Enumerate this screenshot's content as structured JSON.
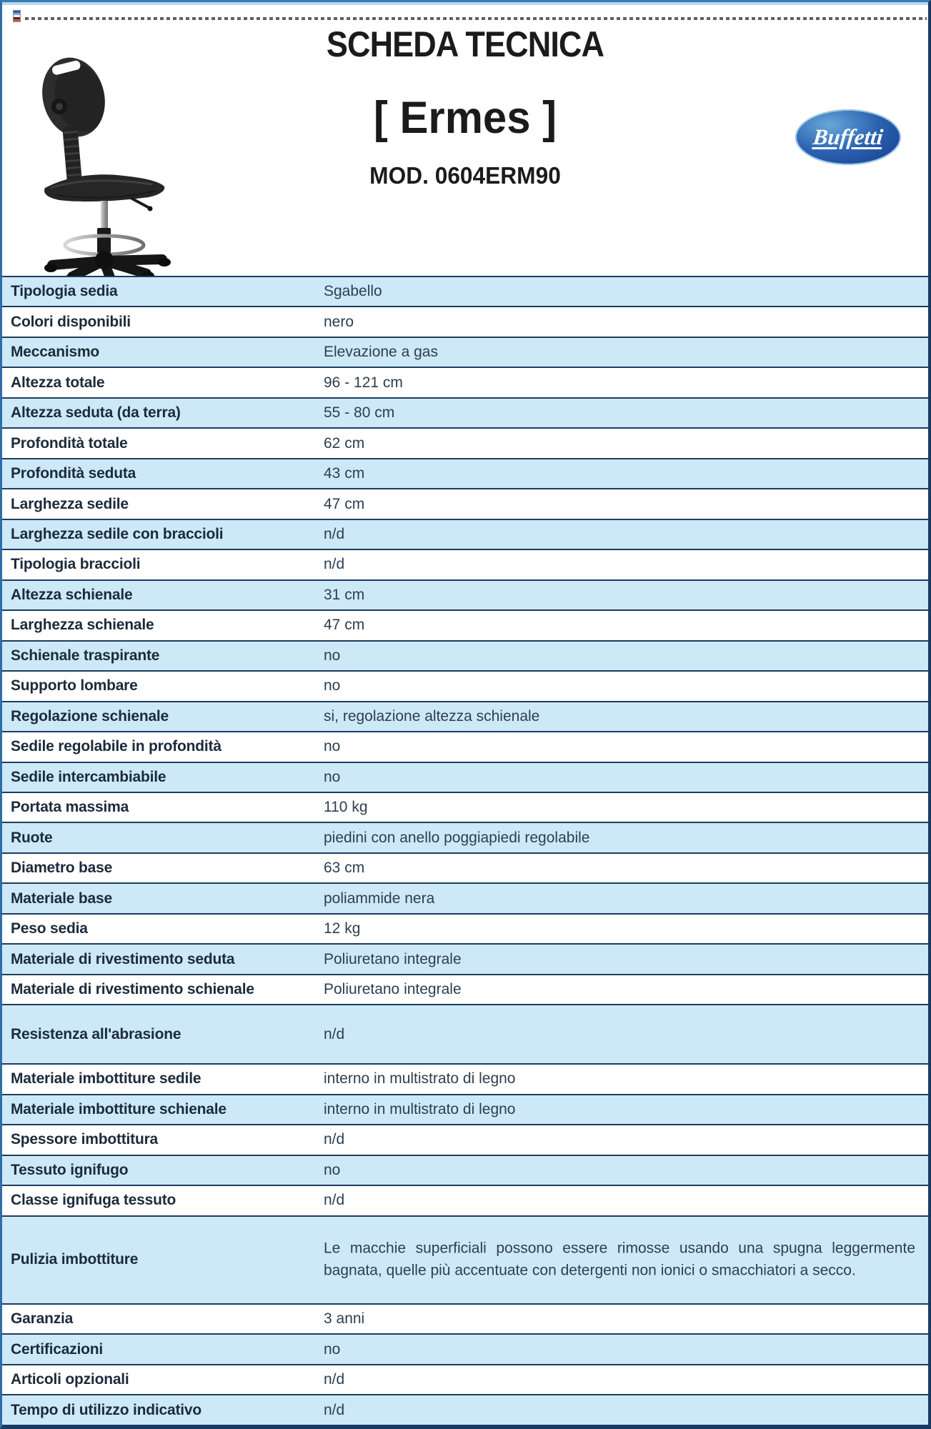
{
  "header": {
    "title": "SCHEDA TECNICA",
    "product": "[ Ermes ]",
    "model": "MOD. 0604ERM90",
    "brand": "Buffetti"
  },
  "icons": {
    "placeholder_icon": "broken-image-icon",
    "chair_image": "black drafting stool with backrest, gas lift, foot ring and 5-star base",
    "brand_logo": "blue ellipse Buffetti logo"
  },
  "colors": {
    "row_blue": "#cde9f8",
    "row_white": "#ffffff",
    "border_navy": "#1e3c5f",
    "label_text": "#1c2b3b",
    "value_text": "#2e3e4e",
    "logo_blue": "#2b62b0"
  },
  "table": {
    "rows": [
      {
        "label": "Tipologia sedia",
        "value": "Sgabello",
        "size": "normal"
      },
      {
        "label": "Colori disponibili",
        "value": "nero",
        "size": "normal"
      },
      {
        "label": "Meccanismo",
        "value": "Elevazione a gas",
        "size": "normal"
      },
      {
        "label": "Altezza totale",
        "value": "96 - 121 cm",
        "size": "normal"
      },
      {
        "label": "Altezza seduta (da terra)",
        "value": "55 - 80 cm",
        "size": "normal"
      },
      {
        "label": "Profondità totale",
        "value": "62 cm",
        "size": "normal"
      },
      {
        "label": "Profondità seduta",
        "value": "43 cm",
        "size": "normal"
      },
      {
        "label": "Larghezza sedile",
        "value": "47 cm",
        "size": "normal"
      },
      {
        "label": "Larghezza sedile con braccioli",
        "value": "n/d",
        "size": "normal"
      },
      {
        "label": "Tipologia braccioli",
        "value": "n/d",
        "size": "normal"
      },
      {
        "label": "Altezza schienale",
        "value": "31 cm",
        "size": "normal"
      },
      {
        "label": "Larghezza schienale",
        "value": "47 cm",
        "size": "normal"
      },
      {
        "label": "Schienale traspirante",
        "value": "no",
        "size": "normal"
      },
      {
        "label": "Supporto lombare",
        "value": "no",
        "size": "normal"
      },
      {
        "label": "Regolazione schienale",
        "value": "si, regolazione altezza schienale",
        "size": "normal"
      },
      {
        "label": "Sedile regolabile in profondità",
        "value": "no",
        "size": "normal"
      },
      {
        "label": "Sedile intercambiabile",
        "value": "no",
        "size": "normal"
      },
      {
        "label": "Portata massima",
        "value": "110 kg",
        "size": "normal"
      },
      {
        "label": "Ruote",
        "value": "piedini con anello poggiapiedi regolabile",
        "size": "normal"
      },
      {
        "label": "Diametro base",
        "value": "63 cm",
        "size": "normal"
      },
      {
        "label": "Materiale base",
        "value": "poliammide nera",
        "size": "normal"
      },
      {
        "label": "Peso sedia",
        "value": "12 kg",
        "size": "normal"
      },
      {
        "label": "Materiale di rivestimento seduta",
        "value": "Poliuretano integrale",
        "size": "normal"
      },
      {
        "label": "Materiale di rivestimento schienale",
        "value": "Poliuretano integrale",
        "size": "normal"
      },
      {
        "label": "Resistenza all'abrasione",
        "value": "n/d",
        "size": "tall"
      },
      {
        "label": "Materiale imbottiture sedile",
        "value": "interno in multistrato di legno",
        "size": "normal"
      },
      {
        "label": "Materiale imbottiture schienale",
        "value": "interno in multistrato di legno",
        "size": "normal"
      },
      {
        "label": "Spessore imbottitura",
        "value": "n/d",
        "size": "normal"
      },
      {
        "label": "Tessuto ignifugo",
        "value": "no",
        "size": "normal"
      },
      {
        "label": "Classe ignifuga tessuto",
        "value": "n/d",
        "size": "normal"
      },
      {
        "label": "Pulizia imbottiture",
        "value": "Le macchie superficiali possono essere rimosse usando una spugna leggermente bagnata, quelle più accentuate con detergenti non ionici  o smacchiatori a secco.",
        "size": "xtall"
      },
      {
        "label": "Garanzia",
        "value": "3 anni",
        "size": "normal"
      },
      {
        "label": "Certificazioni",
        "value": "no",
        "size": "normal"
      },
      {
        "label": "Articoli opzionali",
        "value": "n/d",
        "size": "normal"
      },
      {
        "label": "Tempo di utilizzo indicativo",
        "value": "n/d",
        "size": "normal"
      }
    ]
  }
}
